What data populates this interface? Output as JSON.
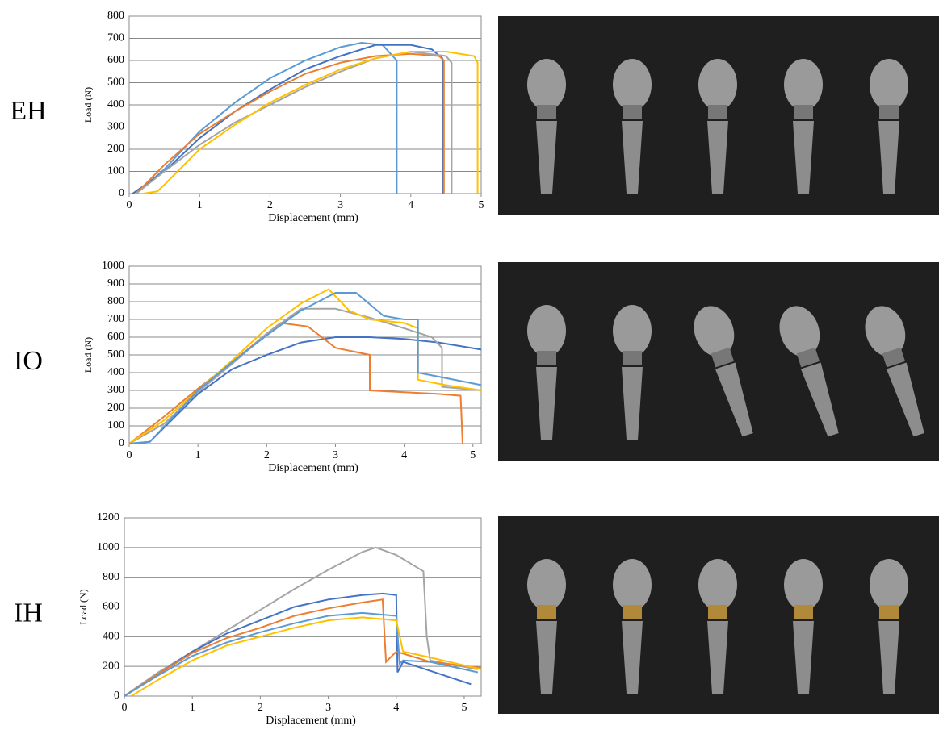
{
  "chart_data": [
    {
      "type": "line",
      "panel_label": "EH",
      "x_label": "Displacement (mm)",
      "y_label": "Load (N)",
      "xlim": [
        0,
        5
      ],
      "xticks": [
        0,
        1,
        2,
        3,
        4,
        5
      ],
      "ylim": [
        0,
        800
      ],
      "yticks": [
        0,
        100,
        200,
        300,
        400,
        500,
        600,
        700,
        800
      ],
      "grid": true,
      "series": [
        {
          "color": "#5b9bd5",
          "x": [
            0.1,
            0.5,
            1,
            1.5,
            2,
            2.5,
            3,
            3.3,
            3.6,
            3.8,
            3.8
          ],
          "values": [
            0,
            110,
            280,
            410,
            520,
            600,
            660,
            680,
            670,
            600,
            0
          ]
        },
        {
          "color": "#4472c4",
          "x": [
            0.05,
            0.5,
            1,
            1.5,
            2,
            2.5,
            3,
            3.5,
            4,
            4.3,
            4.45,
            4.45
          ],
          "values": [
            0,
            100,
            250,
            370,
            470,
            560,
            620,
            670,
            670,
            650,
            610,
            0
          ]
        },
        {
          "color": "#ed7d31",
          "x": [
            0.1,
            0.5,
            1,
            1.5,
            2,
            2.5,
            3,
            3.5,
            4,
            4.4,
            4.47,
            4.47
          ],
          "values": [
            0,
            130,
            270,
            370,
            460,
            540,
            590,
            620,
            630,
            620,
            600,
            0
          ]
        },
        {
          "color": "#a5a5a5",
          "x": [
            0.1,
            0.5,
            1,
            1.5,
            2,
            2.5,
            3,
            3.5,
            4,
            4.5,
            4.58,
            4.58
          ],
          "values": [
            0,
            100,
            220,
            320,
            400,
            480,
            550,
            610,
            640,
            620,
            590,
            0
          ]
        },
        {
          "color": "#ffc000",
          "x": [
            0.2,
            0.4,
            0.5,
            1,
            1.5,
            2,
            2.5,
            3,
            3.5,
            4,
            4.5,
            4.9,
            4.95,
            4.95
          ],
          "values": [
            0,
            10,
            40,
            200,
            310,
            410,
            490,
            560,
            610,
            640,
            640,
            620,
            590,
            0
          ]
        }
      ]
    },
    {
      "type": "line",
      "panel_label": "IO",
      "x_label": "Displacement (mm)",
      "y_label": "Load (N)",
      "xlim": [
        0,
        5.12
      ],
      "xticks": [
        0,
        1,
        2,
        3,
        4,
        5
      ],
      "ylim": [
        0,
        1000
      ],
      "yticks": [
        0,
        100,
        200,
        300,
        400,
        500,
        600,
        700,
        800,
        900,
        1000
      ],
      "grid": true,
      "series": [
        {
          "color": "#4472c4",
          "x": [
            0,
            0.3,
            1,
            1.5,
            2,
            2.5,
            3,
            3.5,
            4,
            4.5,
            5.12
          ],
          "values": [
            0,
            10,
            280,
            420,
            500,
            570,
            600,
            600,
            590,
            570,
            530
          ]
        },
        {
          "color": "#ed7d31",
          "x": [
            0,
            0.5,
            1,
            1.5,
            2,
            2.2,
            2.6,
            3,
            3.5,
            3.5,
            4,
            4.5,
            4.82,
            4.85
          ],
          "values": [
            0,
            150,
            310,
            460,
            620,
            680,
            660,
            540,
            500,
            300,
            290,
            280,
            270,
            0
          ]
        },
        {
          "color": "#a5a5a5",
          "x": [
            0,
            0.5,
            1,
            1.5,
            2,
            2.5,
            3,
            3.5,
            4,
            4.4,
            4.55,
            4.55,
            5.12
          ],
          "values": [
            0,
            110,
            290,
            450,
            620,
            760,
            760,
            710,
            650,
            600,
            540,
            320,
            300
          ]
        },
        {
          "color": "#ffc000",
          "x": [
            0,
            0.5,
            1,
            1.5,
            2,
            2.5,
            2.9,
            3.2,
            3.5,
            4,
            4.2,
            4.2,
            4.6,
            5.12
          ],
          "values": [
            0,
            130,
            300,
            470,
            650,
            790,
            870,
            750,
            700,
            680,
            650,
            360,
            330,
            300
          ]
        },
        {
          "color": "#5b9bd5",
          "x": [
            0,
            0.3,
            1,
            1.5,
            2,
            2.5,
            3,
            3.3,
            3.7,
            4,
            4.2,
            4.2,
            4.6,
            5.12
          ],
          "values": [
            0,
            10,
            300,
            460,
            610,
            750,
            850,
            850,
            720,
            700,
            700,
            400,
            370,
            330
          ]
        }
      ]
    },
    {
      "type": "line",
      "panel_label": "IH",
      "x_label": "Displacement (mm)",
      "y_label": "Load (N)",
      "xlim": [
        0,
        5.25
      ],
      "xticks": [
        0,
        1,
        2,
        3,
        4,
        5
      ],
      "ylim": [
        0,
        1200
      ],
      "yticks": [
        0,
        200,
        400,
        600,
        800,
        1000,
        1200
      ],
      "grid": true,
      "series": [
        {
          "color": "#a5a5a5",
          "x": [
            0,
            0.5,
            1,
            1.5,
            2,
            2.5,
            3,
            3.5,
            3.7,
            4,
            4.4,
            4.45,
            4.5,
            5.2
          ],
          "values": [
            0,
            160,
            300,
            440,
            580,
            720,
            850,
            970,
            1000,
            950,
            840,
            400,
            240,
            180
          ]
        },
        {
          "color": "#4472c4",
          "x": [
            0,
            0.5,
            1,
            1.5,
            2,
            2.5,
            3,
            3.5,
            3.8,
            4,
            4.02,
            4.1,
            4.5,
            5.1
          ],
          "values": [
            0,
            150,
            300,
            420,
            510,
            600,
            650,
            680,
            690,
            680,
            160,
            230,
            170,
            80
          ]
        },
        {
          "color": "#ed7d31",
          "x": [
            0,
            0.5,
            1,
            1.5,
            2,
            2.5,
            3,
            3.5,
            3.8,
            3.85,
            4,
            4.5,
            5.25
          ],
          "values": [
            0,
            150,
            290,
            390,
            460,
            540,
            590,
            630,
            650,
            230,
            300,
            230,
            190
          ]
        },
        {
          "color": "#5b9bd5",
          "x": [
            0,
            0.5,
            1,
            1.5,
            2,
            2.5,
            3,
            3.5,
            4,
            4.05,
            4.1,
            4.5,
            5.2
          ],
          "values": [
            0,
            140,
            270,
            360,
            430,
            490,
            540,
            560,
            540,
            220,
            240,
            230,
            160
          ]
        },
        {
          "color": "#ffc000",
          "x": [
            0.1,
            0.5,
            1,
            1.5,
            2,
            2.5,
            3,
            3.5,
            4,
            4.1,
            4.5,
            5.25
          ],
          "values": [
            0,
            110,
            240,
            340,
            400,
            460,
            510,
            530,
            510,
            300,
            260,
            180
          ]
        }
      ]
    }
  ]
}
